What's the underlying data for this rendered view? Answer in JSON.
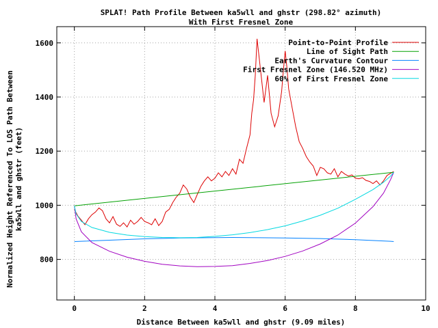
{
  "chart_data": {
    "type": "line",
    "title_line1": "SPLAT! Path Profile Between ka5wll and ghstr (298.82° azimuth)",
    "title_line2": "With First Fresnel Zone",
    "xlabel": "Distance Between ka5wll and ghstr (9.09 miles)",
    "ylabel_line1": "Normalized Height Referenced To LOS Path Between",
    "ylabel_line2": "ka5wll and ghstr (feet)",
    "xlim": [
      -0.5,
      10
    ],
    "ylim": [
      650,
      1660
    ],
    "xticks": [
      0,
      2,
      4,
      6,
      8,
      10
    ],
    "yticks": [
      800,
      1000,
      1200,
      1400,
      1600
    ],
    "grid": true,
    "legend_position": "top-right",
    "series": [
      {
        "name": "Point-to-Point Profile",
        "color": "#dd0000",
        "x": [
          0,
          0.1,
          0.2,
          0.3,
          0.4,
          0.5,
          0.6,
          0.7,
          0.8,
          0.9,
          1.0,
          1.1,
          1.2,
          1.3,
          1.4,
          1.5,
          1.6,
          1.7,
          1.8,
          1.9,
          2.0,
          2.1,
          2.2,
          2.3,
          2.4,
          2.5,
          2.6,
          2.7,
          2.8,
          2.9,
          3.0,
          3.1,
          3.2,
          3.3,
          3.4,
          3.5,
          3.6,
          3.7,
          3.8,
          3.9,
          4.0,
          4.1,
          4.2,
          4.3,
          4.4,
          4.5,
          4.6,
          4.7,
          4.8,
          4.9,
          5.0,
          5.05,
          5.1,
          5.15,
          5.2,
          5.3,
          5.35,
          5.4,
          5.5,
          5.6,
          5.7,
          5.8,
          5.9,
          5.95,
          6.0,
          6.05,
          6.1,
          6.2,
          6.3,
          6.4,
          6.5,
          6.6,
          6.7,
          6.8,
          6.9,
          7.0,
          7.1,
          7.2,
          7.3,
          7.4,
          7.5,
          7.6,
          7.7,
          7.8,
          7.9,
          8.0,
          8.1,
          8.2,
          8.3,
          8.4,
          8.5,
          8.6,
          8.7,
          8.8,
          8.9,
          9.0,
          9.09
        ],
        "y": [
          985,
          960,
          945,
          928,
          950,
          965,
          975,
          990,
          980,
          950,
          935,
          958,
          930,
          922,
          935,
          920,
          945,
          930,
          940,
          955,
          940,
          935,
          928,
          950,
          925,
          940,
          975,
          985,
          1010,
          1030,
          1045,
          1075,
          1060,
          1030,
          1010,
          1040,
          1070,
          1090,
          1105,
          1090,
          1100,
          1120,
          1105,
          1125,
          1110,
          1135,
          1115,
          1170,
          1155,
          1210,
          1260,
          1340,
          1390,
          1480,
          1615,
          1500,
          1440,
          1380,
          1480,
          1340,
          1290,
          1330,
          1420,
          1500,
          1570,
          1510,
          1430,
          1360,
          1290,
          1235,
          1210,
          1180,
          1160,
          1145,
          1110,
          1140,
          1135,
          1120,
          1115,
          1135,
          1105,
          1125,
          1115,
          1108,
          1112,
          1100,
          1098,
          1102,
          1092,
          1088,
          1080,
          1090,
          1075,
          1090,
          1110,
          1118,
          1125
        ]
      },
      {
        "name": "Line of Sight Path",
        "color": "#00a000",
        "x": [
          0,
          9.09
        ],
        "y": [
          998,
          1122
        ]
      },
      {
        "name": "Earth's Curvature Contour",
        "color": "#0080ff",
        "x": [
          0,
          1,
          2,
          3,
          4,
          4.5,
          5,
          6,
          7,
          8,
          9,
          9.09
        ],
        "y": [
          866,
          871,
          876,
          879,
          880.5,
          881,
          880.5,
          879,
          877,
          873,
          867,
          866
        ]
      },
      {
        "name": "First Fresnel Zone (146.520 MHz)",
        "color": "#a000c0",
        "x": [
          0,
          0.05,
          0.2,
          0.5,
          1.0,
          1.5,
          2.0,
          2.5,
          3.0,
          3.5,
          4.0,
          4.5,
          5.0,
          5.5,
          6.0,
          6.5,
          7.0,
          7.5,
          8.0,
          8.5,
          8.8,
          9.0,
          9.09
        ],
        "y": [
          998,
          950,
          902,
          862,
          830,
          808,
          793,
          782,
          776,
          773,
          774,
          777,
          785,
          796,
          811,
          831,
          857,
          890,
          934,
          995,
          1045,
          1095,
          1122
        ]
      },
      {
        "name": "60% of First Fresnel Zone",
        "color": "#00d8e0",
        "x": [
          0,
          0.05,
          0.2,
          0.5,
          1.0,
          1.5,
          2.0,
          2.5,
          3.0,
          3.5,
          4.0,
          4.5,
          5.0,
          5.5,
          6.0,
          6.5,
          7.0,
          7.5,
          8.0,
          8.5,
          8.8,
          9.0,
          9.09
        ],
        "y": [
          998,
          968,
          940,
          918,
          900,
          890,
          884,
          881,
          880,
          881,
          885,
          891,
          899,
          910,
          924,
          942,
          963,
          989,
          1022,
          1058,
          1085,
          1108,
          1122
        ]
      }
    ]
  }
}
